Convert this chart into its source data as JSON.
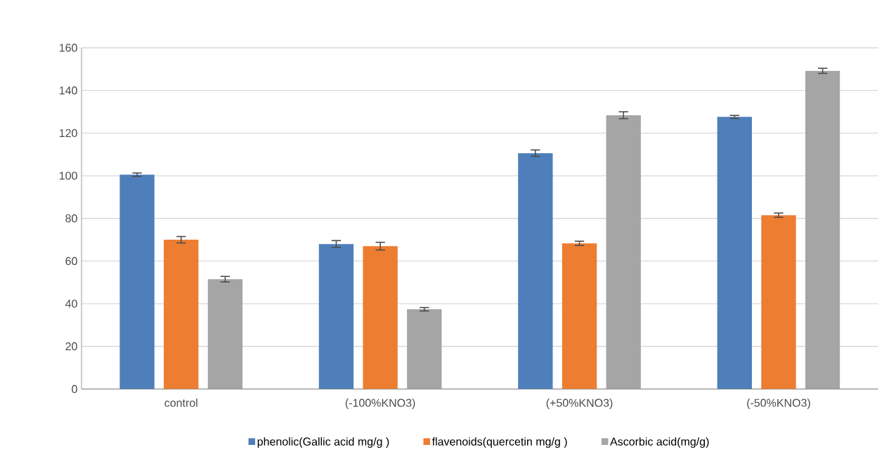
{
  "chart_data": {
    "type": "bar",
    "categories": [
      "control",
      "(-100%KNO3)",
      "(+50%KNO3)",
      "(-50%KNO3)"
    ],
    "series": [
      {
        "name": "phenolic(Gallic acid mg/g )",
        "color": "#4e7fbb",
        "values": [
          100.5,
          68,
          110.6,
          127.6
        ],
        "errors": [
          0.8,
          1.6,
          1.5,
          0.7
        ]
      },
      {
        "name": "flavenoids(quercetin mg/g )",
        "color": "#ed7d31",
        "values": [
          70,
          67,
          68.3,
          81.5
        ],
        "errors": [
          1.5,
          1.8,
          1.0,
          1.0
        ]
      },
      {
        "name": "Ascorbic acid(mg/g)",
        "color": "#a5a5a5",
        "values": [
          51.5,
          37.4,
          128.4,
          149.2
        ],
        "errors": [
          1.3,
          0.8,
          1.6,
          1.2
        ]
      }
    ],
    "ylim": [
      0,
      160
    ],
    "yticks": [
      0,
      20,
      40,
      60,
      80,
      100,
      120,
      140,
      160
    ],
    "grid": "y",
    "legend": "bottom"
  }
}
